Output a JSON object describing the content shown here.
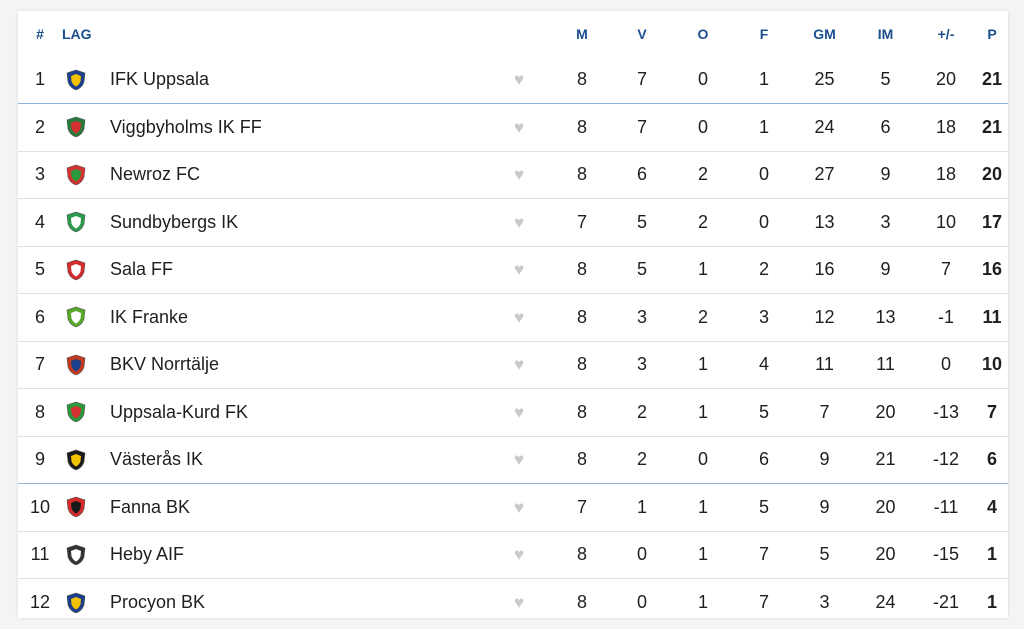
{
  "header": {
    "rank": "#",
    "team": "LAG",
    "played": "M",
    "won": "V",
    "drawn": "O",
    "lost": "F",
    "goals_for": "GM",
    "goals_against": "IM",
    "diff": "+/-",
    "points": "P"
  },
  "rows": [
    {
      "rank": "1",
      "team": "IFK Uppsala",
      "logo_icon": "ifk-uppsala-crest-icon",
      "logo_color": "#1c3f8c",
      "logo_accent": "#f2c200",
      "m": "8",
      "v": "7",
      "o": "0",
      "f": "1",
      "gm": "25",
      "im": "5",
      "diff": "20",
      "p": "21"
    },
    {
      "rank": "2",
      "team": "Viggbyholms IK FF",
      "logo_icon": "viggbyholms-crest-icon",
      "logo_color": "#2a7a3c",
      "logo_accent": "#d43030",
      "m": "8",
      "v": "7",
      "o": "0",
      "f": "1",
      "gm": "24",
      "im": "6",
      "diff": "18",
      "p": "21"
    },
    {
      "rank": "3",
      "team": "Newroz FC",
      "logo_icon": "newroz-crest-icon",
      "logo_color": "#d43030",
      "logo_accent": "#2a9a3c",
      "m": "8",
      "v": "6",
      "o": "2",
      "f": "0",
      "gm": "27",
      "im": "9",
      "diff": "18",
      "p": "20"
    },
    {
      "rank": "4",
      "team": "Sundbybergs IK",
      "logo_icon": "sundbybergs-crest-icon",
      "logo_color": "#2a9a4c",
      "logo_accent": "#ffffff",
      "m": "7",
      "v": "5",
      "o": "2",
      "f": "0",
      "gm": "13",
      "im": "3",
      "diff": "10",
      "p": "17"
    },
    {
      "rank": "5",
      "team": "Sala FF",
      "logo_icon": "sala-ff-crest-icon",
      "logo_color": "#d42c2c",
      "logo_accent": "#ffffff",
      "m": "8",
      "v": "5",
      "o": "1",
      "f": "2",
      "gm": "16",
      "im": "9",
      "diff": "7",
      "p": "16"
    },
    {
      "rank": "6",
      "team": "IK Franke",
      "logo_icon": "ik-franke-crest-icon",
      "logo_color": "#5aa82a",
      "logo_accent": "#ffffff",
      "m": "8",
      "v": "3",
      "o": "2",
      "f": "3",
      "gm": "12",
      "im": "13",
      "diff": "-1",
      "p": "11"
    },
    {
      "rank": "7",
      "team": "BKV Norrtälje",
      "logo_icon": "bkv-norrtalje-crest-icon",
      "logo_color": "#c43a1c",
      "logo_accent": "#1c3f8c",
      "m": "8",
      "v": "3",
      "o": "1",
      "f": "4",
      "gm": "11",
      "im": "11",
      "diff": "0",
      "p": "10"
    },
    {
      "rank": "8",
      "team": "Uppsala-Kurd FK",
      "logo_icon": "uppsala-kurd-crest-icon",
      "logo_color": "#2a9a3c",
      "logo_accent": "#d43030",
      "m": "8",
      "v": "2",
      "o": "1",
      "f": "5",
      "gm": "7",
      "im": "20",
      "diff": "-13",
      "p": "7"
    },
    {
      "rank": "9",
      "team": "Västerås IK",
      "logo_icon": "vasteras-ik-crest-icon",
      "logo_color": "#1a1a1a",
      "logo_accent": "#f2c200",
      "m": "8",
      "v": "2",
      "o": "0",
      "f": "6",
      "gm": "9",
      "im": "21",
      "diff": "-12",
      "p": "6"
    },
    {
      "rank": "10",
      "team": "Fanna BK",
      "logo_icon": "fanna-bk-crest-icon",
      "logo_color": "#d42c2c",
      "logo_accent": "#1a1a1a",
      "m": "7",
      "v": "1",
      "o": "1",
      "f": "5",
      "gm": "9",
      "im": "20",
      "diff": "-11",
      "p": "4"
    },
    {
      "rank": "11",
      "team": "Heby AIF",
      "logo_icon": "heby-aif-crest-icon",
      "logo_color": "#333333",
      "logo_accent": "#ffffff",
      "m": "8",
      "v": "0",
      "o": "1",
      "f": "7",
      "gm": "5",
      "im": "20",
      "diff": "-15",
      "p": "1"
    },
    {
      "rank": "12",
      "team": "Procyon BK",
      "logo_icon": "procyon-bk-crest-icon",
      "logo_color": "#1c3f8c",
      "logo_accent": "#f2c200",
      "m": "8",
      "v": "0",
      "o": "1",
      "f": "7",
      "gm": "3",
      "im": "24",
      "diff": "-21",
      "p": "1"
    }
  ],
  "separators_after_rank": [
    "1",
    "9"
  ],
  "favorite_icon": "heart-icon",
  "colors": {
    "header_text": "#1c4f8d",
    "separator_blue": "#8bb3dd",
    "heart": "#c9c9c9"
  }
}
